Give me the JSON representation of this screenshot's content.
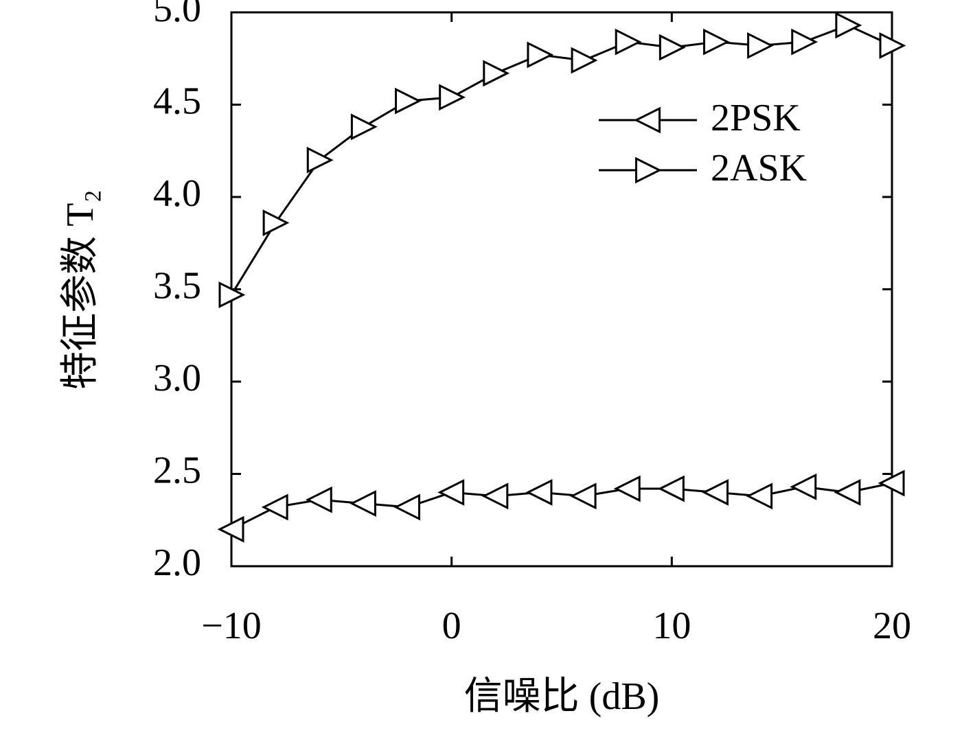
{
  "chart_data": {
    "type": "line",
    "x_label": "信噪比 (dB)",
    "y_label": "特征参数 T₂",
    "x": [
      -10,
      -8,
      -6,
      -4,
      -2,
      0,
      2,
      4,
      6,
      8,
      10,
      12,
      14,
      16,
      18,
      20
    ],
    "series": [
      {
        "name": "2PSK",
        "color": "#000000",
        "marker": "triangle-left",
        "values": [
          2.2,
          2.32,
          2.36,
          2.34,
          2.32,
          2.4,
          2.38,
          2.4,
          2.38,
          2.42,
          2.42,
          2.4,
          2.38,
          2.43,
          2.4,
          2.45
        ]
      },
      {
        "name": "2ASK",
        "color": "#000000",
        "marker": "triangle-right",
        "values": [
          3.47,
          3.86,
          4.2,
          4.38,
          4.52,
          4.54,
          4.67,
          4.77,
          4.74,
          4.84,
          4.81,
          4.84,
          4.82,
          4.84,
          4.93,
          4.82
        ]
      }
    ],
    "xlim": [
      -10,
      20
    ],
    "xticks": [
      {
        "value": -10,
        "label": "−10"
      },
      0,
      10,
      20
    ],
    "ylim": [
      2,
      5
    ],
    "yticks": [
      {
        "value": 2,
        "label": "2.0"
      },
      {
        "value": 2.5,
        "label": "2.5"
      },
      {
        "value": 3,
        "label": "3.0"
      },
      {
        "value": 3.5,
        "label": "3.5"
      },
      {
        "value": 4,
        "label": "4.0"
      },
      {
        "value": 4.5,
        "label": "4.5"
      },
      {
        "value": 5,
        "label": "5.0"
      }
    ],
    "grid": false,
    "legend": "upper right"
  }
}
